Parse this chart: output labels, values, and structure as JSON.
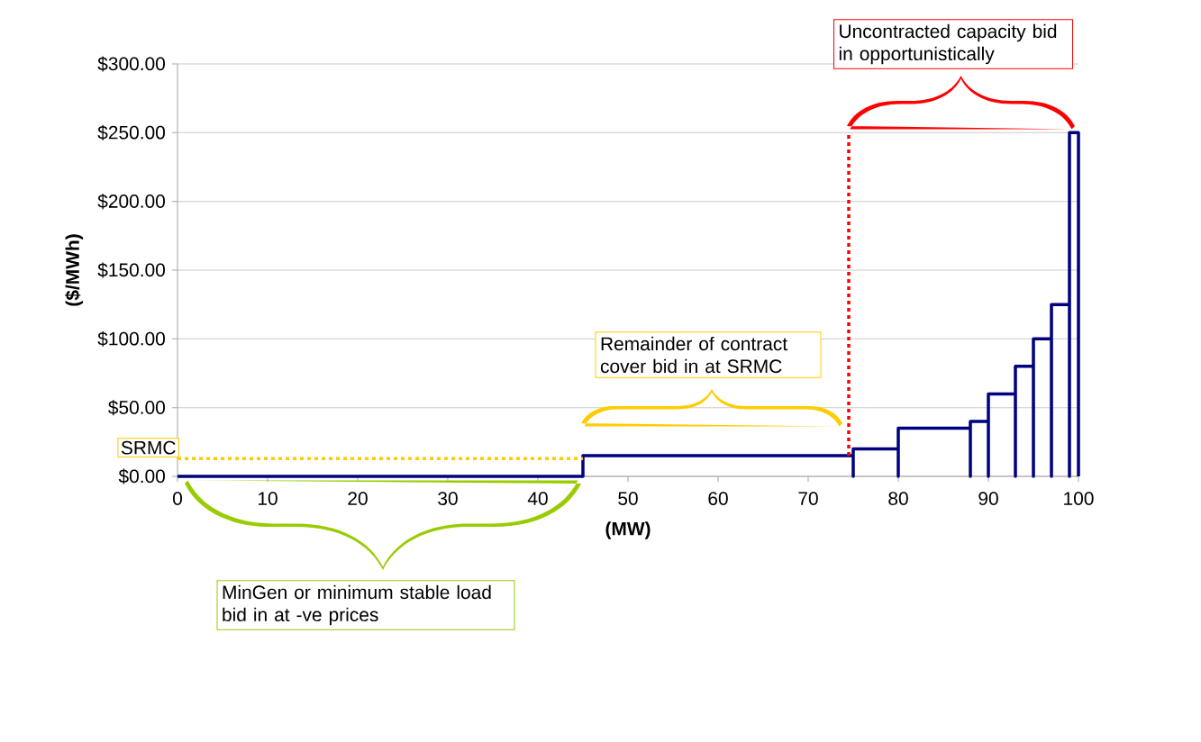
{
  "chart_data": {
    "type": "line",
    "xlabel": "(MW)",
    "ylabel": "($/MWh)",
    "xlim": [
      0,
      100
    ],
    "ylim": [
      0,
      300
    ],
    "xticks": [
      0,
      10,
      20,
      30,
      40,
      50,
      60,
      70,
      80,
      90,
      100
    ],
    "yticks": [
      {
        "value": 0,
        "label": "$0.00"
      },
      {
        "value": 50,
        "label": "$50.00"
      },
      {
        "value": 100,
        "label": "$100.00"
      },
      {
        "value": 150,
        "label": "$150.00"
      },
      {
        "value": 200,
        "label": "$200.00"
      },
      {
        "value": 250,
        "label": "$250.00"
      },
      {
        "value": 300,
        "label": "$300.00"
      }
    ],
    "grid": "y",
    "series": [
      {
        "color": "#000080",
        "x": [
          0,
          45,
          45,
          75,
          75,
          75,
          80,
          80,
          80,
          88,
          88,
          88,
          90,
          90,
          90,
          93,
          93,
          93,
          95,
          95,
          95,
          97,
          97,
          97,
          99,
          99,
          99,
          100,
          100
        ],
        "values": [
          0,
          0,
          15,
          15,
          0,
          20,
          20,
          0,
          35,
          35,
          0,
          40,
          40,
          0,
          60,
          60,
          0,
          80,
          80,
          0,
          100,
          100,
          0,
          125,
          125,
          0,
          250,
          250,
          0
        ]
      },
      {
        "name": "SRMC",
        "color": "#ffcc00",
        "line_style": "dotted",
        "x": [
          0,
          45
        ],
        "values": [
          13,
          13
        ]
      },
      {
        "color": "#ff0000",
        "line_style": "dotted",
        "x": [
          74.5,
          74.5
        ],
        "values": [
          15,
          250
        ]
      }
    ],
    "annotations": [
      "Uncontracted capacity bid in opportunistically",
      "Remainder of contract cover bid in at SRMC",
      "MinGen or minimum stable load bid in at -ve prices"
    ]
  }
}
